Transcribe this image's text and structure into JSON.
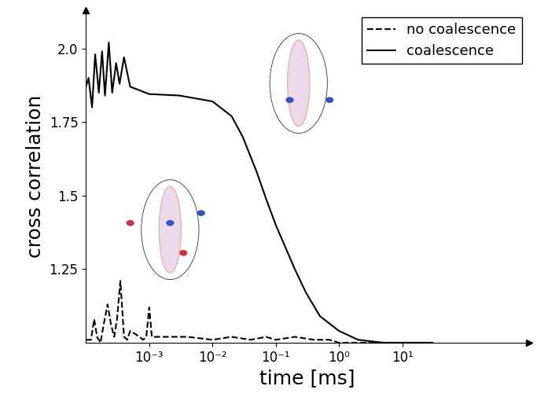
{
  "chart_data": {
    "type": "line",
    "x_label": "time [ms]",
    "y_label": "cross correlation",
    "log": "x",
    "legend": "upper right",
    "xlim": [
      0.0001,
      1000
    ],
    "ylim": [
      1.0,
      2.13
    ],
    "xticks": [
      {
        "value": 0.001,
        "label": "10⁻³"
      },
      {
        "value": 0.01,
        "label": "10⁻²"
      },
      {
        "value": 0.1,
        "label": "10⁻¹"
      },
      {
        "value": 1,
        "label": "10⁰"
      },
      {
        "value": 10,
        "label": "10¹"
      }
    ],
    "yticks": [
      1.25,
      1.5,
      1.75,
      {
        "value": 2.0,
        "label": "2.0"
      }
    ],
    "series": [
      {
        "name": "no coalescence",
        "color": "#000000",
        "line_style": "dashed",
        "x": [
          0.0001,
          0.00012,
          0.000135,
          0.00015,
          0.00017,
          0.00019,
          0.00022,
          0.00025,
          0.00028,
          0.00031,
          0.00035,
          0.0004,
          0.00045,
          0.0005,
          0.0006,
          0.0007,
          0.0008,
          0.0009,
          0.001,
          0.0011,
          0.0013,
          0.002,
          0.004,
          0.01,
          0.02,
          0.04,
          0.07,
          0.1,
          0.2,
          0.4,
          0.7,
          1,
          3,
          10,
          30
        ],
        "values": [
          1.01,
          1.01,
          1.08,
          1.02,
          1.0,
          1.06,
          1.13,
          1.06,
          1.02,
          1.08,
          1.21,
          1.02,
          1.01,
          1.04,
          1.03,
          1.02,
          1.01,
          1.02,
          1.12,
          1.02,
          1.02,
          1.02,
          1.02,
          1.01,
          1.02,
          1.01,
          1.02,
          1.01,
          1.02,
          1.01,
          1.01,
          1.0,
          1.0,
          1.0,
          1.0
        ]
      },
      {
        "name": "coalescence",
        "color": "#000000",
        "line_style": "solid",
        "x": [
          0.0001,
          0.00011,
          0.000125,
          0.00014,
          0.00016,
          0.00018,
          0.0002,
          0.00023,
          0.00026,
          0.0003,
          0.00034,
          0.0004,
          0.0005,
          0.001,
          0.003,
          0.01,
          0.02,
          0.03,
          0.05,
          0.07,
          0.1,
          0.2,
          0.3,
          0.5,
          1,
          2,
          5,
          10,
          30
        ],
        "values": [
          1.87,
          1.9,
          1.8,
          1.98,
          1.85,
          1.99,
          1.84,
          2.02,
          1.85,
          1.95,
          1.88,
          1.97,
          1.87,
          1.845,
          1.84,
          1.82,
          1.77,
          1.7,
          1.58,
          1.49,
          1.4,
          1.25,
          1.17,
          1.09,
          1.04,
          1.01,
          1.0,
          1.0,
          1.0
        ]
      }
    ]
  }
}
